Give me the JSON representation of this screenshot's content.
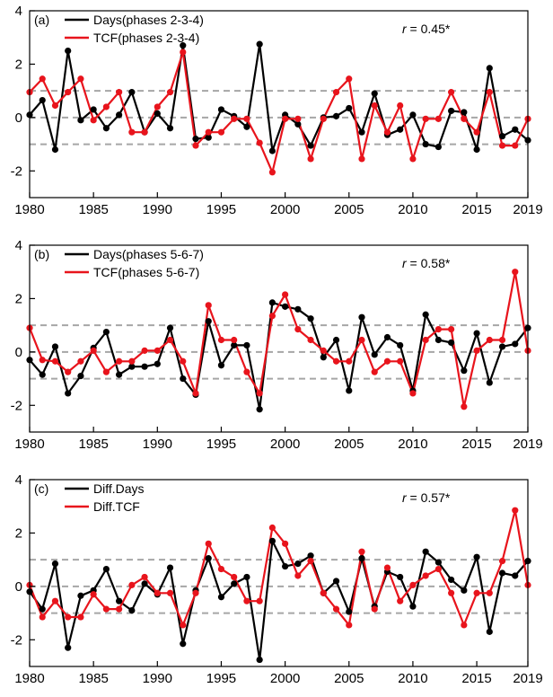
{
  "chart_data": [
    {
      "type": "line",
      "panel_label": "(a)",
      "r_symbol": "r",
      "r_text": " = 0.45*",
      "x": [
        1980,
        1981,
        1982,
        1983,
        1984,
        1985,
        1986,
        1987,
        1988,
        1989,
        1990,
        1991,
        1992,
        1993,
        1994,
        1995,
        1996,
        1997,
        1998,
        1999,
        2000,
        2001,
        2002,
        2003,
        2004,
        2005,
        2006,
        2007,
        2008,
        2009,
        2010,
        2011,
        2012,
        2013,
        2014,
        2015,
        2016,
        2017,
        2018,
        2019
      ],
      "series": [
        {
          "name": "Days(phases 2-3-4)",
          "color": "#000000",
          "values": [
            0.1,
            0.65,
            -1.2,
            2.5,
            -0.1,
            0.3,
            -0.4,
            0.1,
            0.95,
            -0.55,
            0.15,
            -0.4,
            2.7,
            -0.8,
            -0.75,
            0.3,
            0.05,
            -0.35,
            2.75,
            -1.25,
            0.1,
            -0.25,
            -1.05,
            0.0,
            0.05,
            0.35,
            -0.55,
            0.9,
            -0.65,
            -0.45,
            0.1,
            -1.0,
            -1.1,
            0.25,
            0.2,
            -1.2,
            1.85,
            -0.7,
            -0.45,
            -0.85
          ]
        },
        {
          "name": "TCF(phases 2-3-4)",
          "color": "#e8141c",
          "values": [
            0.95,
            1.45,
            0.45,
            0.95,
            1.45,
            -0.1,
            0.4,
            0.95,
            -0.55,
            -0.55,
            0.4,
            0.95,
            2.45,
            -1.05,
            -0.55,
            -0.55,
            -0.05,
            -0.05,
            -0.95,
            -2.05,
            -0.05,
            -0.05,
            -1.55,
            -0.05,
            0.95,
            1.45,
            -1.55,
            0.45,
            -0.55,
            0.45,
            -1.55,
            -0.05,
            -0.05,
            0.95,
            -0.05,
            -0.55,
            0.95,
            -1.05,
            -1.05,
            -0.05
          ]
        }
      ],
      "reference_lines": [
        -1,
        0,
        1
      ],
      "xlim": [
        1980,
        2019
      ],
      "ylim": [
        -3,
        4
      ],
      "xticks": [
        1980,
        1985,
        1990,
        1995,
        2000,
        2005,
        2010,
        2015,
        2019
      ],
      "yticks": [
        -2,
        0,
        2,
        4
      ],
      "legend_placement": "top-left"
    },
    {
      "type": "line",
      "panel_label": "(b)",
      "r_symbol": "r",
      "r_text": " = 0.58*",
      "x": [
        1980,
        1981,
        1982,
        1983,
        1984,
        1985,
        1986,
        1987,
        1988,
        1989,
        1990,
        1991,
        1992,
        1993,
        1994,
        1995,
        1996,
        1997,
        1998,
        1999,
        2000,
        2001,
        2002,
        2003,
        2004,
        2005,
        2006,
        2007,
        2008,
        2009,
        2010,
        2011,
        2012,
        2013,
        2014,
        2015,
        2016,
        2017,
        2018,
        2019
      ],
      "series": [
        {
          "name": "Days(phases 5-6-7)",
          "color": "#000000",
          "values": [
            -0.3,
            -0.85,
            0.2,
            -1.55,
            -0.9,
            0.15,
            0.75,
            -0.85,
            -0.55,
            -0.55,
            -0.45,
            0.9,
            -1.0,
            -1.6,
            1.15,
            -0.5,
            0.25,
            0.25,
            -2.15,
            1.85,
            1.7,
            1.6,
            1.25,
            -0.2,
            0.45,
            -1.45,
            1.3,
            -0.1,
            0.55,
            0.25,
            -1.45,
            1.4,
            0.45,
            0.35,
            -0.7,
            0.7,
            -1.15,
            0.2,
            0.3,
            0.9
          ]
        },
        {
          "name": "TCF(phases 5-6-7)",
          "color": "#e8141c",
          "values": [
            0.9,
            -0.3,
            -0.35,
            -0.75,
            -0.35,
            0.05,
            -0.75,
            -0.35,
            -0.35,
            0.05,
            0.05,
            0.45,
            -0.35,
            -1.55,
            1.75,
            0.45,
            0.45,
            -0.75,
            -1.55,
            1.35,
            2.15,
            0.85,
            0.45,
            0.05,
            -0.35,
            -0.35,
            0.45,
            -0.75,
            -0.35,
            -0.35,
            -1.55,
            0.45,
            0.85,
            0.85,
            -2.05,
            0.05,
            0.45,
            0.45,
            3.0,
            0.05
          ]
        }
      ],
      "reference_lines": [
        -1,
        0,
        1
      ],
      "xlim": [
        1980,
        2019
      ],
      "ylim": [
        -3,
        4
      ],
      "xticks": [
        1980,
        1985,
        1990,
        1995,
        2000,
        2005,
        2010,
        2015,
        2019
      ],
      "yticks": [
        -2,
        0,
        2,
        4
      ],
      "legend_placement": "top-left"
    },
    {
      "type": "line",
      "panel_label": "(c)",
      "r_symbol": "r",
      "r_text": " = 0.57*",
      "x": [
        1980,
        1981,
        1982,
        1983,
        1984,
        1985,
        1986,
        1987,
        1988,
        1989,
        1990,
        1991,
        1992,
        1993,
        1994,
        1995,
        1996,
        1997,
        1998,
        1999,
        2000,
        2001,
        2002,
        2003,
        2004,
        2005,
        2006,
        2007,
        2008,
        2009,
        2010,
        2011,
        2012,
        2013,
        2014,
        2015,
        2016,
        2017,
        2018,
        2019
      ],
      "series": [
        {
          "name": "Diff.Days",
          "color": "#000000",
          "values": [
            -0.2,
            -0.85,
            0.85,
            -2.3,
            -0.35,
            -0.15,
            0.65,
            -0.55,
            -0.9,
            0.1,
            -0.3,
            0.7,
            -2.15,
            -0.15,
            1.05,
            -0.4,
            0.1,
            0.35,
            -2.75,
            1.7,
            0.75,
            0.85,
            1.15,
            -0.25,
            0.2,
            -0.95,
            1.05,
            -0.75,
            0.55,
            0.35,
            -0.75,
            1.3,
            0.9,
            0.25,
            -0.15,
            1.1,
            -1.7,
            0.5,
            0.4,
            0.95
          ]
        },
        {
          "name": "Diff.TCF",
          "color": "#e8141c",
          "values": [
            0.05,
            -1.15,
            -0.55,
            -1.15,
            -1.15,
            -0.3,
            -0.85,
            -0.85,
            0.05,
            0.35,
            -0.25,
            -0.25,
            -1.45,
            -0.25,
            1.6,
            0.65,
            0.35,
            -0.55,
            -0.55,
            2.2,
            1.6,
            0.4,
            0.95,
            -0.25,
            -0.85,
            -1.45,
            1.3,
            -0.85,
            0.7,
            -0.55,
            0.05,
            0.4,
            0.65,
            -0.25,
            -1.45,
            -0.25,
            -0.25,
            0.95,
            2.85,
            0.05
          ]
        }
      ],
      "reference_lines": [
        -1,
        0,
        1
      ],
      "xlim": [
        1980,
        2019
      ],
      "ylim": [
        -3,
        4
      ],
      "xticks": [
        1980,
        1985,
        1990,
        1995,
        2000,
        2005,
        2010,
        2015,
        2019
      ],
      "yticks": [
        -2,
        0,
        2,
        4
      ],
      "legend_placement": "top-left"
    }
  ]
}
